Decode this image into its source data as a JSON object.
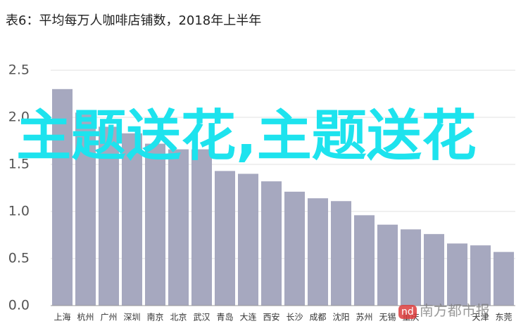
{
  "chart_data": {
    "type": "bar",
    "title": "表6：平均每万人咖啡店铺数，2018年上半年",
    "categories": [
      "上海",
      "杭州",
      "广州",
      "深圳",
      "南京",
      "北京",
      "武汉",
      "青岛",
      "大连",
      "西安",
      "长沙",
      "成都",
      "沈阳",
      "苏州",
      "无锡",
      "重庆",
      null,
      null,
      "天津",
      "东莞"
    ],
    "values": [
      2.3,
      2.05,
      1.9,
      1.83,
      1.72,
      1.66,
      1.66,
      1.43,
      1.4,
      1.32,
      1.21,
      1.14,
      1.11,
      0.96,
      0.86,
      0.81,
      0.76,
      0.66,
      0.64,
      0.57
    ],
    "color": "#a6a8bf",
    "ylim": [
      0,
      2.5
    ],
    "yticks": [
      {
        "value": 0,
        "label": "0.0"
      },
      {
        "value": 0.5,
        "label": "0.5"
      },
      {
        "value": 1,
        "label": "1.0"
      },
      {
        "value": 1.5,
        "label": "1.5"
      },
      {
        "value": 2,
        "label": "2.0"
      },
      {
        "value": 2.5,
        "label": "2.5"
      }
    ],
    "grid": true
  },
  "watermark": "主题送花,主题送花",
  "logo_text": "南方都市报"
}
